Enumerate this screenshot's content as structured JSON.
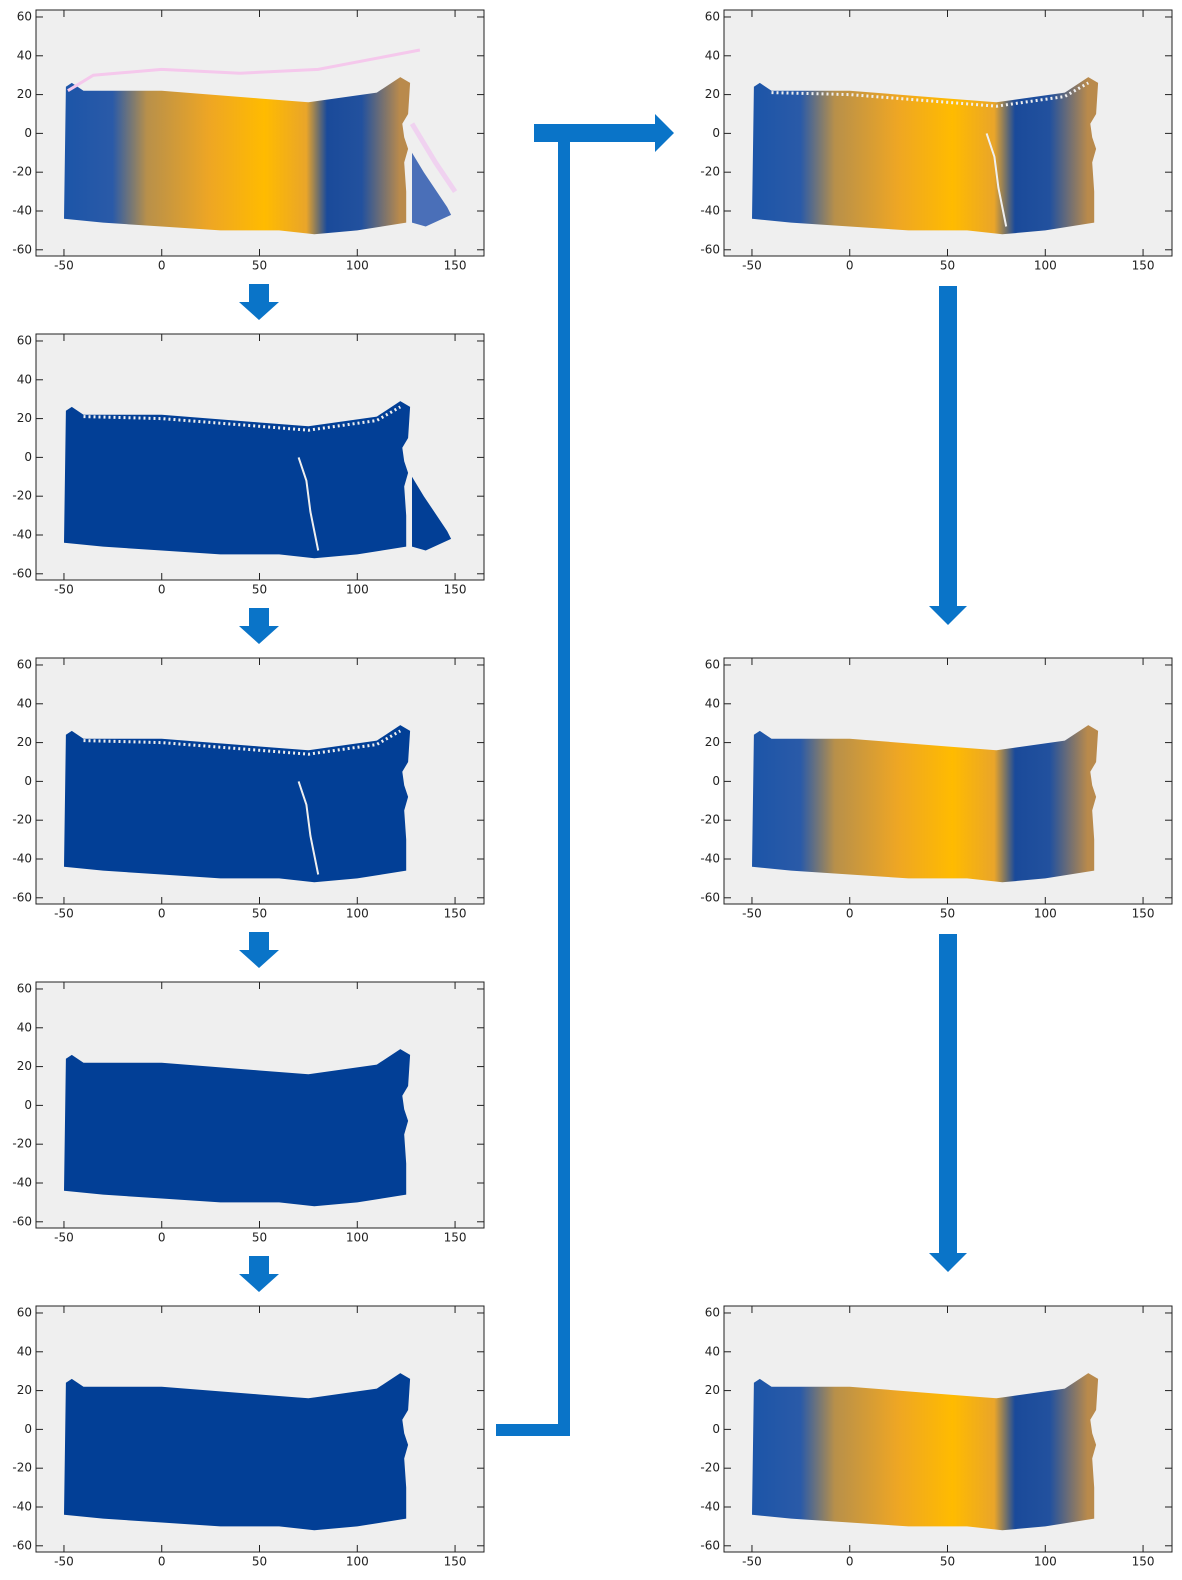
{
  "panels": [
    {
      "xlim": [
        -64.3,
        164.8
      ],
      "ylim": [
        -63.2,
        63.6
      ],
      "xticks": [
        -50,
        0,
        50,
        100,
        150
      ],
      "yticks": [
        60,
        40,
        20,
        0,
        -20,
        -40,
        -60
      ]
    },
    {
      "xlim": [
        -64.3,
        164.8
      ],
      "ylim": [
        -63.2,
        63.6
      ],
      "xticks": [
        -50,
        0,
        50,
        100,
        150
      ],
      "yticks": [
        60,
        40,
        20,
        0,
        -20,
        -40,
        -60
      ]
    },
    {
      "xlim": [
        -64.3,
        164.8
      ],
      "ylim": [
        -63.2,
        63.6
      ],
      "xticks": [
        -50,
        0,
        50,
        100,
        150
      ],
      "yticks": [
        60,
        40,
        20,
        0,
        -20,
        -40,
        -60
      ]
    },
    {
      "xlim": [
        -64.3,
        164.8
      ],
      "ylim": [
        -63.2,
        63.6
      ],
      "xticks": [
        -50,
        0,
        50,
        100,
        150
      ],
      "yticks": [
        60,
        40,
        20,
        0,
        -20,
        -40,
        -60
      ]
    },
    {
      "xlim": [
        -64.3,
        164.8
      ],
      "ylim": [
        -63.2,
        63.6
      ],
      "xticks": [
        -50,
        0,
        50,
        100,
        150
      ],
      "yticks": [
        60,
        40,
        20,
        0,
        -20,
        -40,
        -60
      ]
    },
    {
      "xlim": [
        -64.3,
        164.8
      ],
      "ylim": [
        -63.2,
        63.6
      ],
      "xticks": [
        -50,
        0,
        50,
        100,
        150
      ],
      "yticks": [
        60,
        40,
        20,
        0,
        -20,
        -40,
        -60
      ]
    },
    {
      "xlim": [
        -64.3,
        164.8
      ],
      "ylim": [
        -63.2,
        63.6
      ],
      "xticks": [
        -50,
        0,
        50,
        100,
        150
      ],
      "yticks": [
        60,
        40,
        20,
        0,
        -20,
        -40,
        -60
      ]
    },
    {
      "xlim": [
        -64.3,
        164.8
      ],
      "ylim": [
        -63.2,
        63.6
      ],
      "xticks": [
        -50,
        0,
        50,
        100,
        150
      ],
      "yticks": [
        60,
        40,
        20,
        0,
        -20,
        -40,
        -60
      ]
    }
  ]
}
